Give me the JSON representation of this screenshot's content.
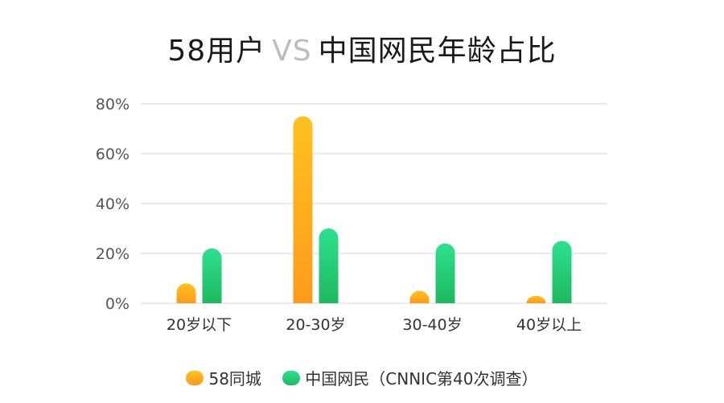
{
  "title": {
    "main_left": "58用户",
    "vs": "VS",
    "main_right": "中国网民年龄占比"
  },
  "chart_data": {
    "type": "bar",
    "categories": [
      "20岁以下",
      "20-30岁",
      "30-40岁",
      "40岁以上"
    ],
    "series": [
      {
        "name": "58同城",
        "values": [
          8,
          75,
          5,
          3
        ],
        "color_top": "#ffc21f",
        "color_bottom": "#ff9a1c"
      },
      {
        "name": "中国网民（CNNIC第40次调查）",
        "values": [
          22,
          30,
          24,
          25
        ],
        "color_top": "#2ee08f",
        "color_bottom": "#1fb860"
      }
    ],
    "ylim": [
      0,
      80
    ],
    "yticks": [
      0,
      20,
      40,
      60,
      80
    ],
    "ytick_labels": [
      "0%",
      "20%",
      "40%",
      "60%",
      "80%"
    ],
    "grid": true,
    "legend_position": "bottom"
  },
  "legend": {
    "series1": "58同城",
    "series2": "中国网民（CNNIC第40次调查）"
  }
}
